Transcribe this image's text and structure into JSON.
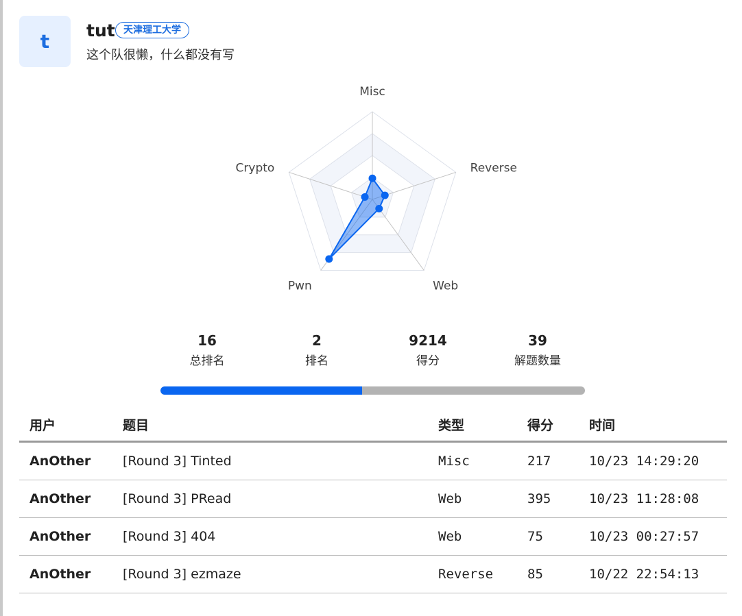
{
  "team": {
    "avatar_letter": "t",
    "name": "tut",
    "school": "天津理工大学",
    "bio": "这个队很懒，什么都没有写"
  },
  "radar": {
    "axes": [
      "Misc",
      "Reverse",
      "Web",
      "Pwn",
      "Crypto"
    ],
    "values": [
      0.24,
      0.15,
      0.13,
      0.84,
      0.09
    ],
    "levels": 4,
    "color": "#0a66f0"
  },
  "stats": [
    {
      "value": "16",
      "label": "总排名"
    },
    {
      "value": "2",
      "label": "排名"
    },
    {
      "value": "9214",
      "label": "得分"
    },
    {
      "value": "39",
      "label": "解题数量"
    }
  ],
  "progress": 0.475,
  "table": {
    "headers": [
      "用户",
      "题目",
      "类型",
      "得分",
      "时间"
    ],
    "rows": [
      {
        "user": "AnOther",
        "title": "[Round 3] Tinted",
        "type": "Misc",
        "score": "217",
        "time": "10/23 14:29:20"
      },
      {
        "user": "AnOther",
        "title": "[Round 3] PRead",
        "type": "Web",
        "score": "395",
        "time": "10/23 11:28:08"
      },
      {
        "user": "AnOther",
        "title": "[Round 3] 404",
        "type": "Web",
        "score": "75",
        "time": "10/23 00:27:57"
      },
      {
        "user": "AnOther",
        "title": "[Round 3] ezmaze",
        "type": "Reverse",
        "score": "85",
        "time": "10/22 22:54:13"
      }
    ]
  }
}
